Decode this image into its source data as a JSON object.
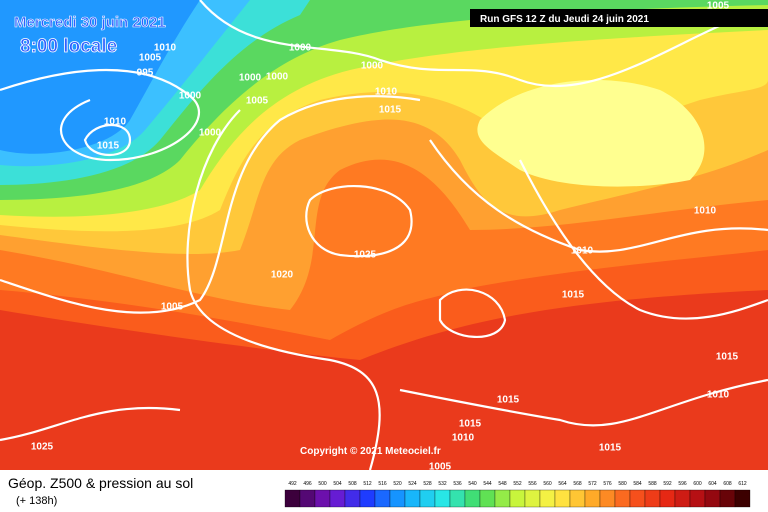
{
  "header": {
    "date": "Mercredi 30 juin 2021",
    "time": "8:00 locale",
    "run": "Run GFS 12 Z du Jeudi 24 juin 2021"
  },
  "isobar_labels": [
    "1010",
    "1005",
    "995",
    "1000",
    "1010",
    "1015",
    "1000",
    "1000",
    "1000",
    "1000",
    "1005",
    "1000",
    "1010",
    "1015",
    "1005",
    "1025",
    "1020",
    "1005",
    "1010",
    "1010",
    "1015",
    "1015",
    "1010",
    "1015",
    "1015",
    "1010",
    "1015",
    "1005",
    "1025"
  ],
  "copyright": "Copyright © 2021 Meteociel.fr",
  "footer": {
    "title": "Géop. Z500 & pression au sol",
    "lead": "(+ 138h)"
  },
  "legend": {
    "labels": [
      492,
      496,
      500,
      504,
      508,
      512,
      516,
      520,
      524,
      528,
      532,
      536,
      540,
      544,
      548,
      552,
      556,
      560,
      564,
      568,
      572,
      576,
      580,
      584,
      588,
      592,
      596,
      600,
      604,
      608,
      612
    ]
  }
}
